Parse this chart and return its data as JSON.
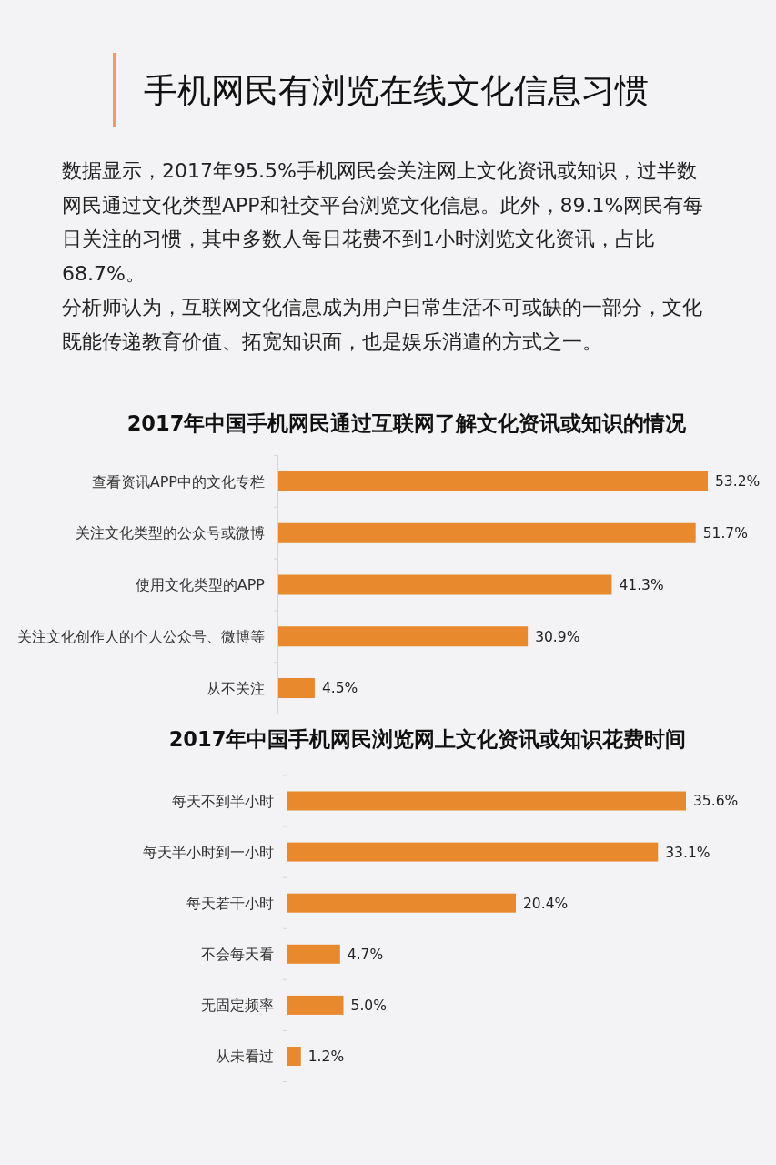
{
  "chart_data": [
    {
      "type": "other",
      "title": "手机网民有浏览在线文化信息习惯",
      "annotations": [
        "数据显示，2017年95.5%手机网民会关注网上文化资讯或知识，过半数网民通过文化类型APP和社交平台浏览文化信息。此外，89.1%网民有每日关注的习惯，其中多数人每日花费不到1小时浏览文化资讯，占比68.7%。",
        "分析师认为，互联网文化信息成为用户日常生活不可或缺的一部分，文化既能传递教育价值、拓宽知识面，也是娱乐消遣的方式之一。"
      ]
    },
    {
      "type": "bar",
      "orientation": "horizontal",
      "title": "2017年中国手机网民通过互联网了解文化资讯或知识的情况",
      "categories": [
        "查看资讯APP中的文化专栏",
        "关注文化类型的公众号或微博",
        "使用文化类型的APP",
        "关注文化创作人的个人公众号、微博等",
        "从不关注"
      ],
      "values": [
        53.2,
        51.7,
        41.3,
        30.9,
        4.5
      ],
      "value_labels": [
        "53.2%",
        "51.7%",
        "41.3%",
        "30.9%",
        "4.5%"
      ],
      "color": "#e8892d"
    },
    {
      "type": "bar",
      "orientation": "horizontal",
      "title": "2017年中国手机网民浏览网上文化资讯或知识花费时间",
      "categories": [
        "每天不到半小时",
        "每天半小时到一小时",
        "每天若干小时",
        "不会每天看",
        "无固定频率",
        "从未看过"
      ],
      "values": [
        35.6,
        33.1,
        20.4,
        4.7,
        5.0,
        1.2
      ],
      "value_labels": [
        "35.6%",
        "33.1%",
        "20.4%",
        "4.7%",
        "5.0%",
        "1.2%"
      ],
      "color": "#e8892d"
    }
  ]
}
